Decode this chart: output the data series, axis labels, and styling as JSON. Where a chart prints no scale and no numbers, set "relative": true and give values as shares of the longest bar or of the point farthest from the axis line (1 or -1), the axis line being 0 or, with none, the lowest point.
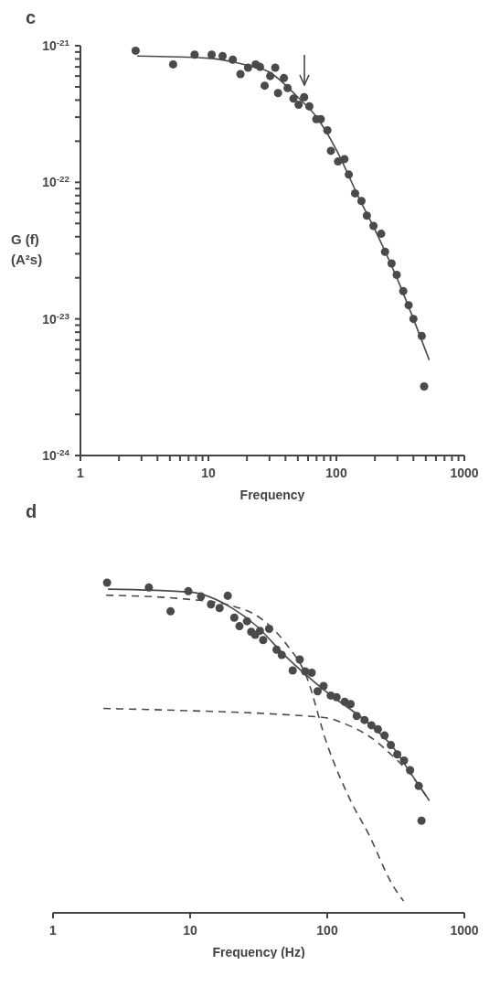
{
  "chart_data": [
    {
      "type": "scatter",
      "title": "c",
      "xlabel": "Frequency",
      "ylabel": "G (f) (A²s)",
      "log": "xy",
      "xlim": [
        1,
        1000
      ],
      "ylim": [
        1e-24,
        1e-21
      ],
      "xticks": [
        1,
        {
          "value": 2,
          "label": null
        },
        {
          "value": 3,
          "label": null
        },
        {
          "value": 4,
          "label": null
        },
        {
          "value": 5,
          "label": null
        },
        {
          "value": 6,
          "label": null
        },
        {
          "value": 7,
          "label": null
        },
        {
          "value": 8,
          "label": null
        },
        {
          "value": 9,
          "label": null
        },
        10,
        {
          "value": 20,
          "label": null
        },
        {
          "value": 30,
          "label": null
        },
        {
          "value": 40,
          "label": null
        },
        {
          "value": 50,
          "label": null
        },
        {
          "value": 60,
          "label": null
        },
        {
          "value": 70,
          "label": null
        },
        {
          "value": 80,
          "label": null
        },
        {
          "value": 90,
          "label": null
        },
        100,
        {
          "value": 200,
          "label": null
        },
        {
          "value": 300,
          "label": null
        },
        {
          "value": 400,
          "label": null
        },
        {
          "value": 500,
          "label": null
        },
        {
          "value": 600,
          "label": null
        },
        {
          "value": 700,
          "label": null
        },
        {
          "value": 800,
          "label": null
        },
        {
          "value": 900,
          "label": null
        },
        1000
      ],
      "yticks": [
        {
          "value": 1e-24,
          "label": "10$^{-24}$"
        },
        {
          "value": 2e-24,
          "label": null
        },
        {
          "value": 3e-24,
          "label": null
        },
        {
          "value": 4e-24,
          "label": null
        },
        {
          "value": 5e-24,
          "label": null
        },
        {
          "value": 6e-24,
          "label": null
        },
        {
          "value": 7e-24,
          "label": null
        },
        {
          "value": 8e-24,
          "label": null
        },
        {
          "value": 9e-24,
          "label": null
        },
        {
          "value": 1e-23,
          "label": "10$^{-23}$"
        },
        {
          "value": 2e-23,
          "label": null
        },
        {
          "value": 3e-23,
          "label": null
        },
        {
          "value": 4e-23,
          "label": null
        },
        {
          "value": 5e-23,
          "label": null
        },
        {
          "value": 6e-23,
          "label": null
        },
        {
          "value": 7e-23,
          "label": null
        },
        {
          "value": 8e-23,
          "label": null
        },
        {
          "value": 9e-23,
          "label": null
        },
        {
          "value": 1e-22,
          "label": "10$^{-22}$"
        },
        {
          "value": 2e-22,
          "label": null
        },
        {
          "value": 3e-22,
          "label": null
        },
        {
          "value": 4e-22,
          "label": null
        },
        {
          "value": 5e-22,
          "label": null
        },
        {
          "value": 6e-22,
          "label": null
        },
        {
          "value": 7e-22,
          "label": null
        },
        {
          "value": 8e-22,
          "label": null
        },
        {
          "value": 9e-22,
          "label": null
        },
        {
          "value": 1e-21,
          "label": "10$^{-21}$"
        }
      ],
      "series": [
        {
          "type": "scatter",
          "color": "#4a4a4a",
          "marker": "circle",
          "x": [
            2.7,
            5.3,
            7.8,
            10.6,
            12.9,
            15.5,
            17.8,
            20.4,
            23.4,
            25.3,
            27.5,
            30.4,
            33.3,
            35,
            38.9,
            41.6,
            46.2,
            50.7,
            56,
            61.5,
            69.7,
            75.5,
            85,
            90.6,
            103,
            115.6,
            125,
            140,
            157,
            173,
            195,
            224,
            240,
            270,
            296,
            333,
            367,
            400,
            465,
            485
          ],
          "values": [
            9.2e-22,
            7.3e-22,
            8.6e-22,
            8.6e-22,
            8.4e-22,
            7.9e-22,
            6.2e-22,
            6.9e-22,
            7.3e-22,
            7e-22,
            5.1e-22,
            6e-22,
            6.9e-22,
            4.5e-22,
            5.8e-22,
            4.9e-22,
            4.1e-22,
            3.7e-22,
            4.2e-22,
            3.6e-22,
            2.9e-22,
            2.9e-22,
            2.4e-22,
            1.7e-22,
            1.42e-22,
            1.48e-22,
            1.14e-22,
            8.3e-23,
            7.3e-23,
            5.7e-23,
            4.8e-23,
            4.2e-23,
            3.1e-23,
            2.55e-23,
            2.1e-23,
            1.6e-23,
            1.26e-23,
            1e-23,
            7.5e-24,
            3.2e-24
          ]
        },
        {
          "type": "line",
          "color": "#4a4a4a",
          "marker": "none",
          "line_style": "solid",
          "x": [
            2.77,
            10,
            20,
            30,
            50,
            70,
            100,
            150,
            200,
            300,
            400,
            532
          ],
          "values": [
            8.4e-22,
            8.1e-22,
            7.2e-22,
            6.4e-22,
            4.2e-22,
            3e-22,
            1.73e-22,
            7.7e-23,
            4.5e-23,
            1.95e-23,
            1e-23,
            5e-24
          ]
        }
      ]
    },
    {
      "type": "scatter",
      "title": "d",
      "xlabel": "Frequency  (Hz)",
      "relative": true,
      "log": "x",
      "xlim": [
        1,
        1000
      ],
      "xticks": [
        1,
        10,
        100,
        1000
      ],
      "series": [
        {
          "type": "scatter",
          "color": "#4a4a4a",
          "marker": "circle",
          "x": [
            2.48,
            5.0,
            7.2,
            9.7,
            12,
            18.8,
            14.2,
            16.4,
            21,
            22.9,
            26,
            27.9,
            32.3,
            29.8,
            34.1,
            37.7,
            42.7,
            46.6,
            63,
            56,
            69,
            77,
            85,
            94,
            106,
            117,
            134,
            148,
            164,
            187,
            210,
            234,
            262,
            291,
            324,
            363,
            402,
            465,
            487
          ],
          "values": [
            1.0,
            0.985,
            0.913,
            0.974,
            0.958,
            0.96,
            0.934,
            0.923,
            0.894,
            0.868,
            0.883,
            0.851,
            0.854,
            0.842,
            0.826,
            0.86,
            0.797,
            0.781,
            0.767,
            0.734,
            0.731,
            0.727,
            0.671,
            0.687,
            0.658,
            0.653,
            0.639,
            0.632,
            0.596,
            0.584,
            0.568,
            0.556,
            0.537,
            0.508,
            0.48,
            0.461,
            0.432,
            0.384,
            0.279
          ]
        },
        {
          "type": "line",
          "color": "#4a4a4a",
          "marker": "none",
          "line_style": "solid",
          "x": [
            2.52,
            10,
            20,
            30,
            50,
            100,
            200,
            300,
            400,
            555
          ],
          "values": [
            0.98,
            0.971,
            0.924,
            0.871,
            0.776,
            0.667,
            0.574,
            0.503,
            0.427,
            0.34
          ]
        },
        {
          "type": "line",
          "color": "#4a4a4a",
          "marker": "none",
          "line_style": "dashed",
          "x": [
            2.44,
            10,
            20,
            30,
            50,
            70,
            100,
            150,
            200,
            300,
            360
          ],
          "values": [
            0.962,
            0.949,
            0.93,
            0.902,
            0.815,
            0.719,
            0.509,
            0.335,
            0.239,
            0.084,
            0.036
          ]
        },
        {
          "type": "line",
          "color": "#4a4a4a",
          "marker": "none",
          "line_style": "dashed",
          "x": [
            2.33,
            10,
            30,
            50,
            70,
            100,
            150,
            200,
            300,
            400,
            555
          ],
          "values": [
            0.619,
            0.612,
            0.605,
            0.6,
            0.596,
            0.59,
            0.564,
            0.536,
            0.475,
            0.422,
            0.34
          ]
        }
      ]
    }
  ]
}
